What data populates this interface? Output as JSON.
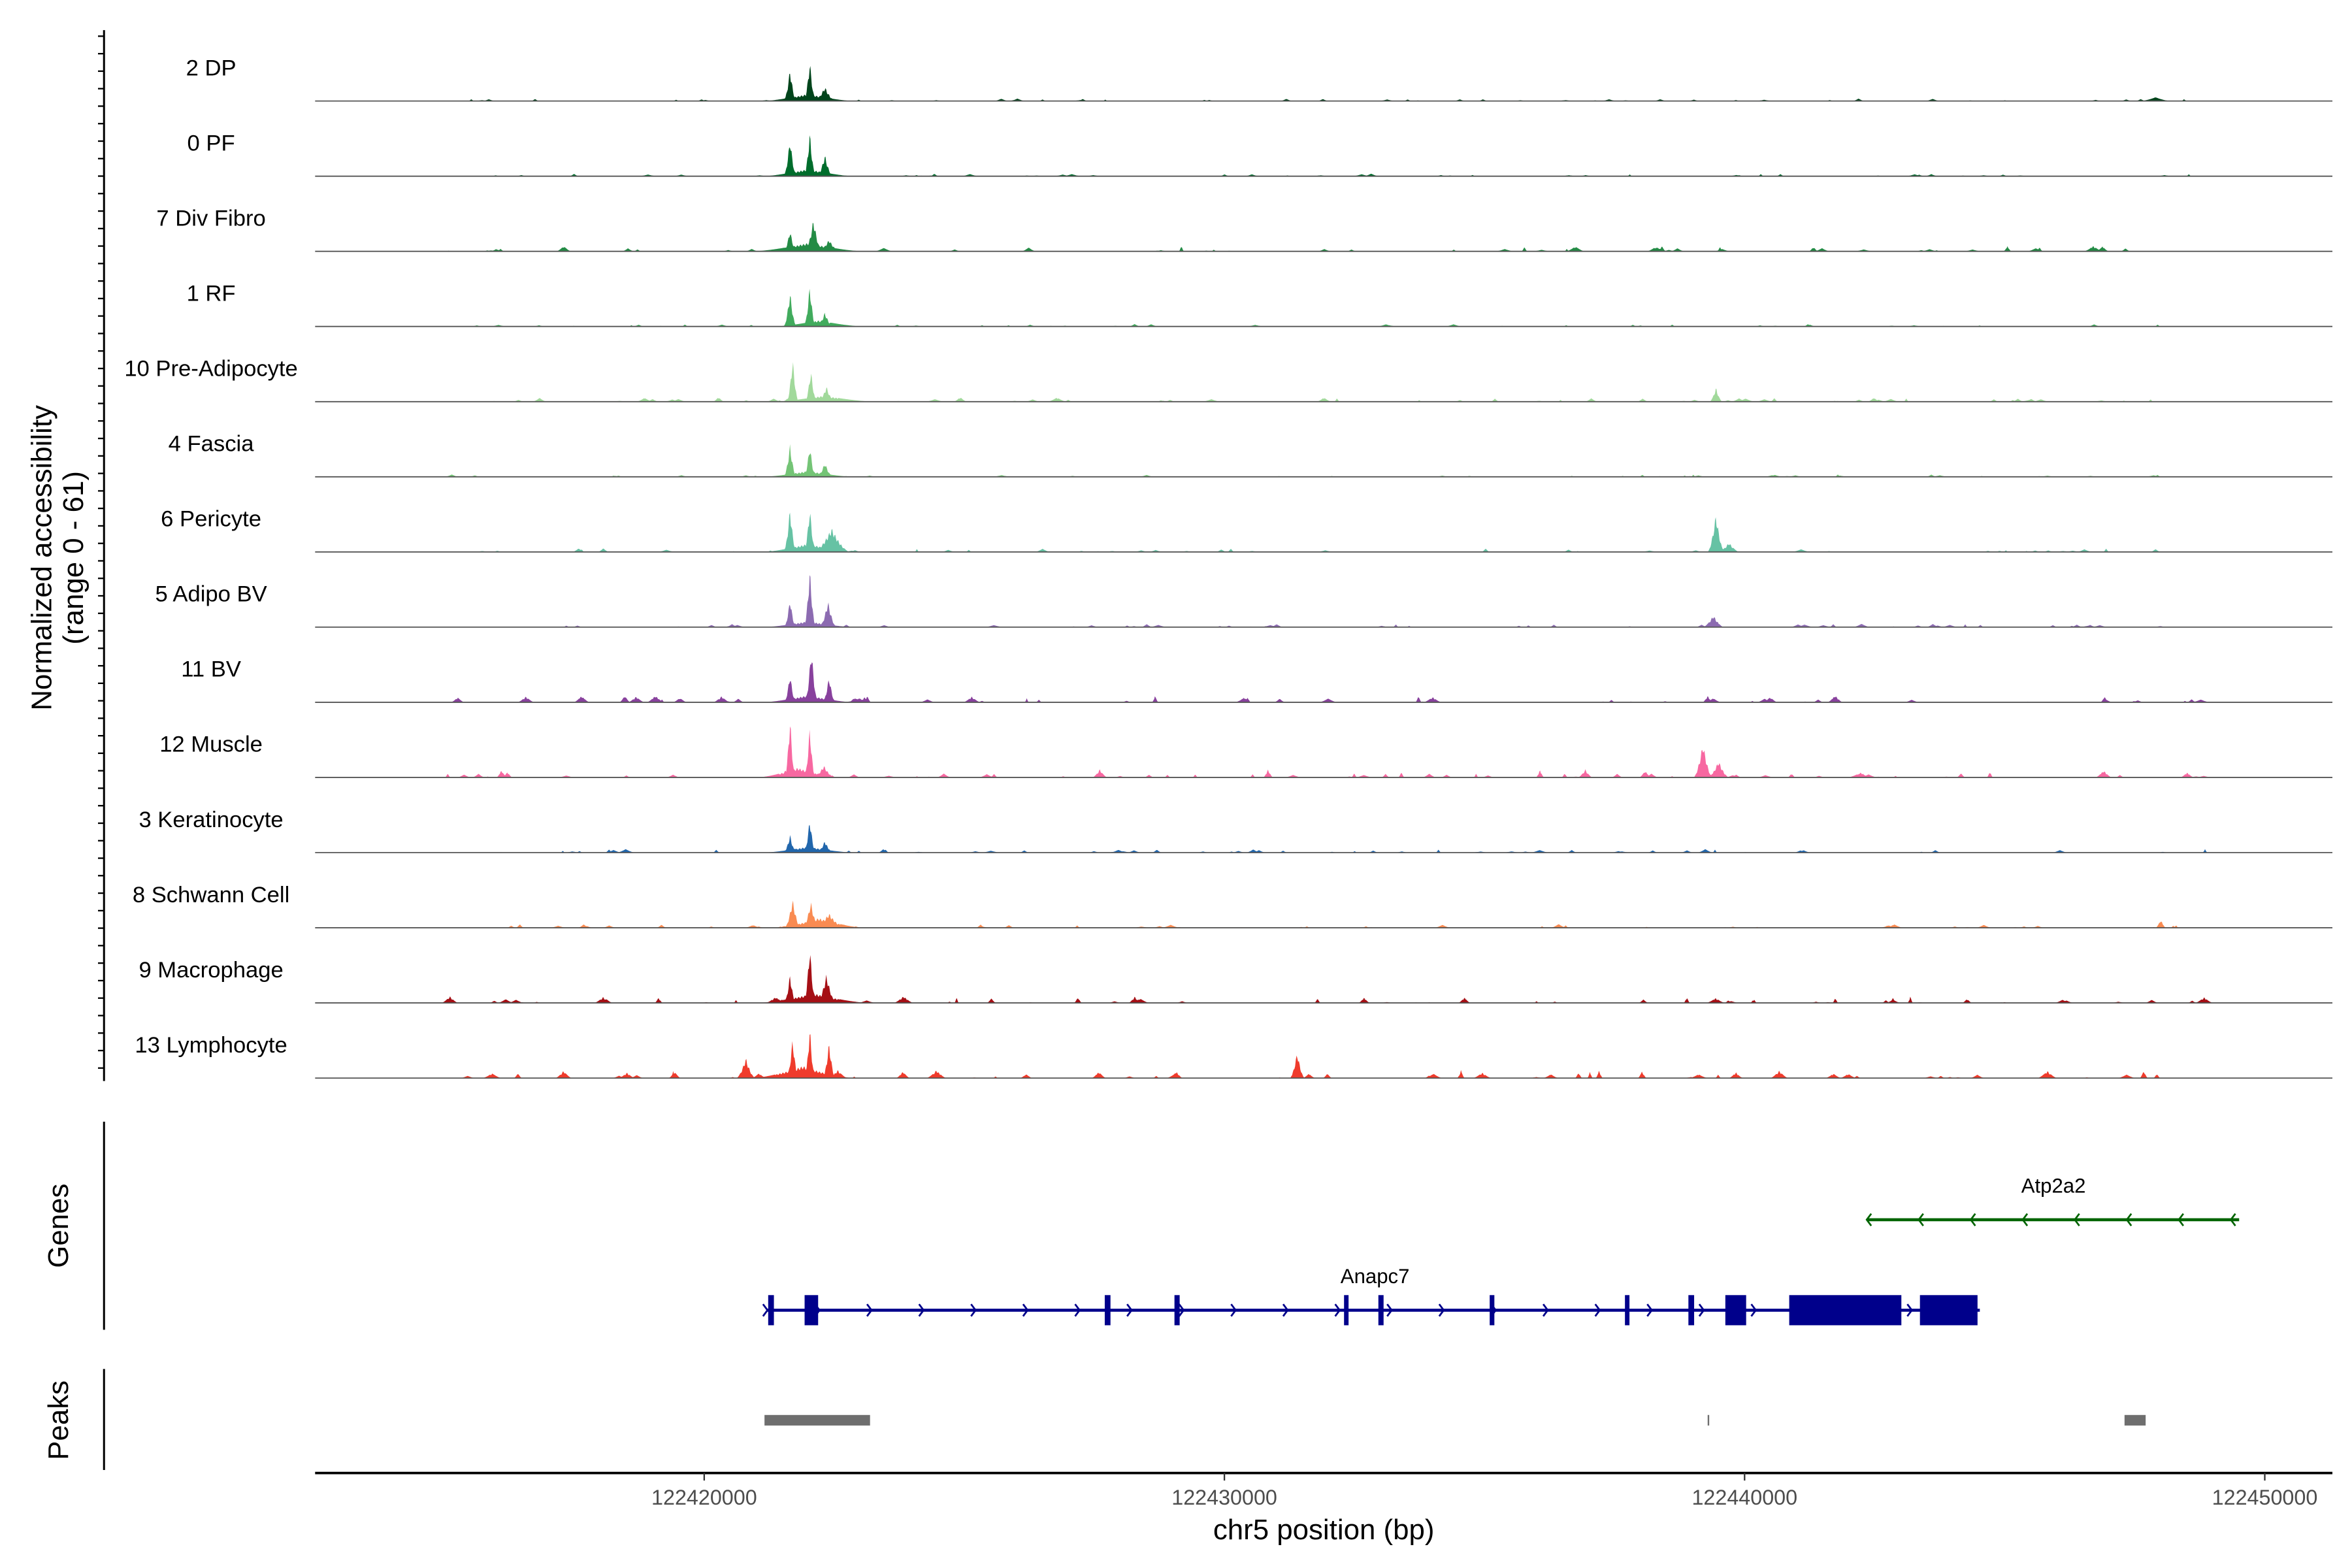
{
  "chart_data": {
    "type": "area",
    "title": "",
    "ylabel": "Normalized accessibility",
    "ylabel_sub": "(range 0 - 61)",
    "ylim": [
      0,
      61
    ],
    "xlabel": "chr5 position (bp)",
    "xlim": [
      122412520,
      122451300
    ],
    "xticks": [
      122420000,
      122430000,
      122440000,
      122450000
    ],
    "xtick_labels": [
      "122420000",
      "122430000",
      "122440000",
      "122450000"
    ],
    "tracks": [
      {
        "name": "2 DP",
        "color": "#00441B",
        "bg": 2,
        "peaks": [
          [
            122421650,
            27,
            120
          ],
          [
            122422030,
            34,
            110
          ],
          [
            122422320,
            12,
            200
          ],
          [
            122422000,
            6,
            900
          ],
          [
            122447900,
            3,
            300
          ]
        ]
      },
      {
        "name": "0 PF",
        "color": "#006D2C",
        "bg": 2,
        "peaks": [
          [
            122421650,
            32,
            120
          ],
          [
            122422030,
            37,
            110
          ],
          [
            122422320,
            18,
            150
          ],
          [
            122422000,
            6,
            900
          ]
        ]
      },
      {
        "name": "7 Div Fibro",
        "color": "#238B45",
        "bg": 5,
        "peaks": [
          [
            122421650,
            18,
            120
          ],
          [
            122422100,
            27,
            160
          ],
          [
            122422400,
            10,
            200
          ],
          [
            122422000,
            7,
            1100
          ]
        ]
      },
      {
        "name": "1 RF",
        "color": "#41AB5D",
        "bg": 2,
        "peaks": [
          [
            122421650,
            29,
            120
          ],
          [
            122422030,
            35,
            110
          ],
          [
            122422320,
            12,
            150
          ],
          [
            122422200,
            5,
            900
          ]
        ]
      },
      {
        "name": "10 Pre-Adipocyte",
        "color": "#A1D99B",
        "bg": 4,
        "peaks": [
          [
            122421700,
            37,
            110
          ],
          [
            122422050,
            27,
            110
          ],
          [
            122422350,
            13,
            150
          ],
          [
            122422300,
            5,
            1000
          ],
          [
            122439450,
            12,
            120
          ]
        ]
      },
      {
        "name": "4 Fascia",
        "color": "#74C476",
        "bg": 2,
        "peaks": [
          [
            122421650,
            27,
            120
          ],
          [
            122422030,
            27,
            110
          ],
          [
            122422320,
            12,
            150
          ],
          [
            122422000,
            5,
            900
          ]
        ]
      },
      {
        "name": "6 Pericyte",
        "color": "#66C2A4",
        "bg": 3,
        "peaks": [
          [
            122421650,
            37,
            120
          ],
          [
            122422030,
            38,
            110
          ],
          [
            122422450,
            20,
            350
          ],
          [
            122422000,
            7,
            900
          ],
          [
            122439450,
            32,
            160
          ],
          [
            122439700,
            8,
            200
          ]
        ]
      },
      {
        "name": "5 Adipo BV",
        "color": "#8C6BB1",
        "bg": 3,
        "peaks": [
          [
            122421650,
            24,
            110
          ],
          [
            122422030,
            49,
            110
          ],
          [
            122422380,
            22,
            160
          ],
          [
            122422000,
            5,
            900
          ],
          [
            122439400,
            10,
            200
          ]
        ]
      },
      {
        "name": "11 BV",
        "color": "#88419D",
        "bg": 6,
        "peaks": [
          [
            122421650,
            24,
            110
          ],
          [
            122422060,
            46,
            120
          ],
          [
            122422400,
            22,
            120
          ],
          [
            122422000,
            6,
            900
          ]
        ]
      },
      {
        "name": "12 Muscle",
        "color": "#F768A1",
        "bg": 7,
        "peaks": [
          [
            122421650,
            51,
            100
          ],
          [
            122422030,
            43,
            100
          ],
          [
            122422300,
            10,
            200
          ],
          [
            122421800,
            8,
            800
          ],
          [
            122439200,
            29,
            180
          ],
          [
            122439500,
            14,
            200
          ]
        ]
      },
      {
        "name": "3 Keratinocyte",
        "color": "#2166AC",
        "bg": 3,
        "peaks": [
          [
            122421650,
            15,
            120
          ],
          [
            122422030,
            29,
            110
          ],
          [
            122422320,
            10,
            150
          ],
          [
            122422000,
            5,
            900
          ]
        ]
      },
      {
        "name": "8 Schwann Cell",
        "color": "#F98B52",
        "bg": 3,
        "peaks": [
          [
            122421700,
            24,
            150
          ],
          [
            122422050,
            22,
            150
          ],
          [
            122422400,
            12,
            300
          ],
          [
            122422200,
            8,
            900
          ],
          [
            122448000,
            7,
            100
          ]
        ]
      },
      {
        "name": "9 Macrophage",
        "color": "#A50F15",
        "bg": 6,
        "peaks": [
          [
            122421650,
            24,
            110
          ],
          [
            122422030,
            49,
            110
          ],
          [
            122422350,
            24,
            180
          ],
          [
            122422100,
            8,
            1100
          ]
        ]
      },
      {
        "name": "13 Lymphocyte",
        "color": "#EF3B2C",
        "bg": 7,
        "peaks": [
          [
            122420800,
            17,
            180
          ],
          [
            122421700,
            34,
            110
          ],
          [
            122422030,
            43,
            100
          ],
          [
            122422400,
            30,
            120
          ],
          [
            122421900,
            10,
            1000
          ],
          [
            122431400,
            22,
            140
          ]
        ]
      }
    ],
    "genes_label": "Genes",
    "genes": [
      {
        "name": "Atp2a2",
        "strand": "-",
        "color": "#006400",
        "start": 122442348,
        "end": 122449507,
        "exons": []
      },
      {
        "name": "Anapc7",
        "strand": "+",
        "color": "#00008B",
        "start": 122421217,
        "end": 122444522,
        "exons": [
          [
            122421230,
            122421340
          ],
          [
            122421930,
            122422190
          ],
          [
            122427700,
            122427810
          ],
          [
            122429040,
            122429140
          ],
          [
            122432300,
            122432380
          ],
          [
            122432960,
            122433060
          ],
          [
            122435100,
            122435190
          ],
          [
            122437700,
            122437780
          ],
          [
            122438920,
            122439030
          ],
          [
            122439630,
            122440030
          ],
          [
            122440858,
            122443014
          ],
          [
            122443371,
            122444478
          ]
        ]
      }
    ],
    "peaks_label": "Peaks",
    "peaks_color": "#6E6E6E",
    "peak_regions": [
      [
        122421159,
        122423188
      ],
      [
        122439290,
        122439320
      ],
      [
        122447304,
        122447710
      ]
    ]
  }
}
